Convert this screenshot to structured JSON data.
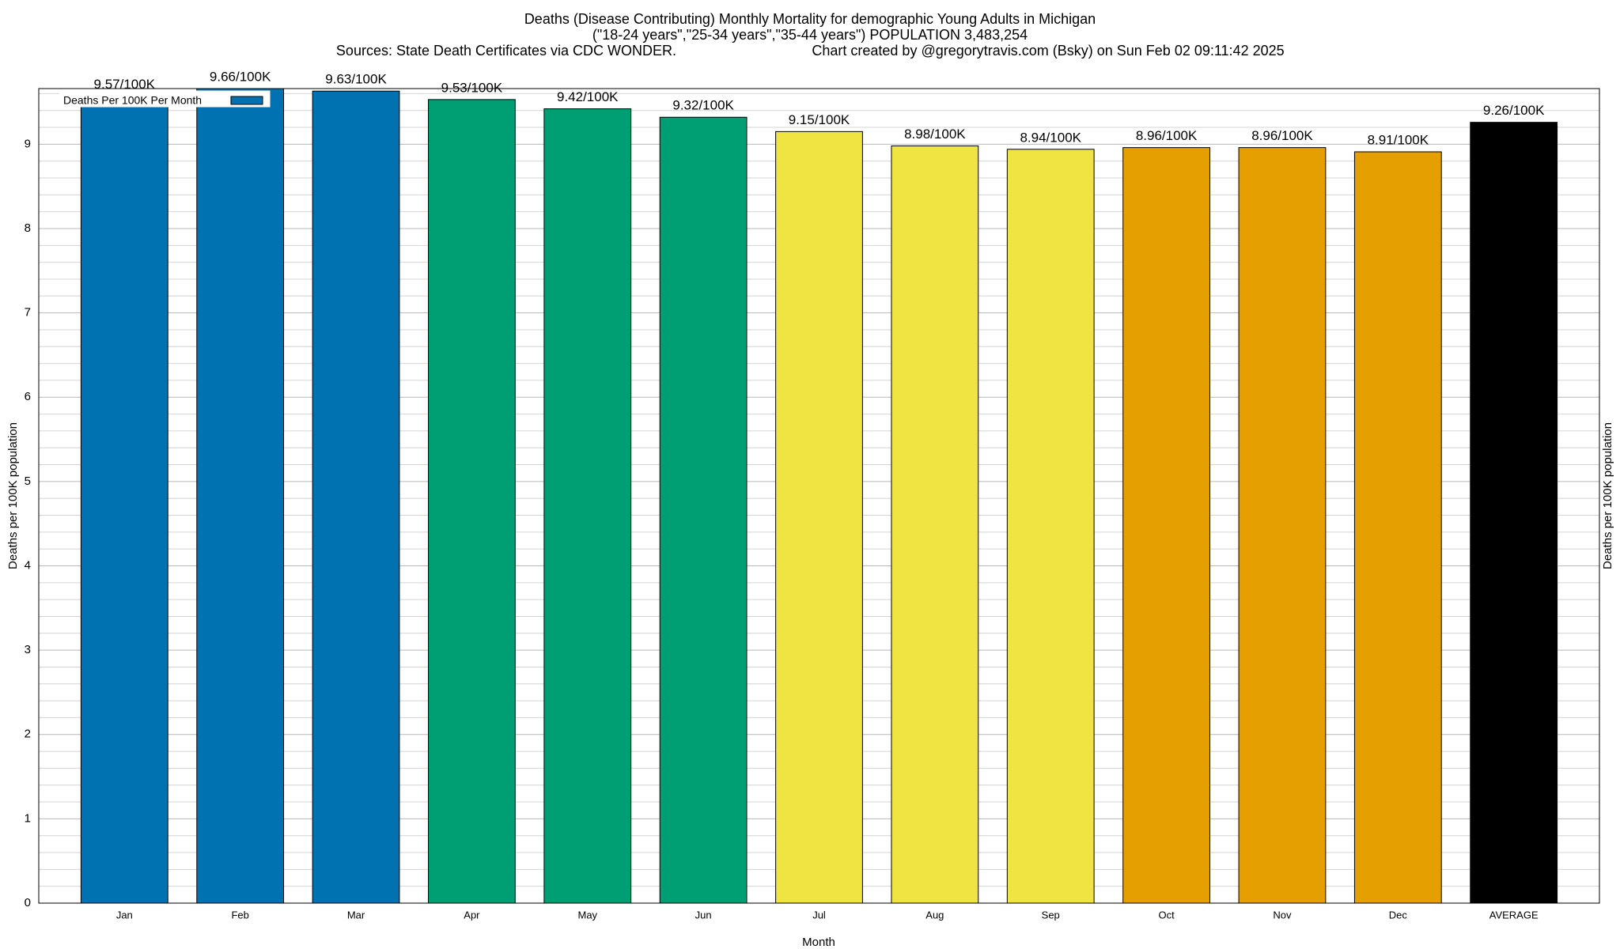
{
  "chart_data": {
    "type": "bar",
    "title": "Deaths (Disease Contributing) Monthly Mortality for demographic Young Adults in Michigan",
    "subtitle": "(\"18-24 years\",\"25-34 years\",\"35-44 years\") POPULATION 3,483,254",
    "source": "Sources: State Death Certificates via CDC WONDER.",
    "credit": "Chart created by @gregorytravis.com (Bsky) on Sun Feb 02 09:11:42 2025",
    "x_label": "Month",
    "y_label": "Deaths per 100K population",
    "y2_label": "Deaths per 100K population",
    "categories": [
      "Jan",
      "Feb",
      "Mar",
      "Apr",
      "May",
      "Jun",
      "Jul",
      "Aug",
      "Sep",
      "Oct",
      "Nov",
      "Dec",
      "AVERAGE"
    ],
    "series": [
      {
        "name": "Deaths Per 100K Per Month",
        "color": "#0072b2",
        "colors": [
          "#0072b2",
          "#0072b2",
          "#0072b2",
          "#009e73",
          "#009e73",
          "#009e73",
          "#f0e442",
          "#f0e442",
          "#f0e442",
          "#e69f00",
          "#e69f00",
          "#e69f00",
          "#000000"
        ],
        "values": [
          9.57,
          9.66,
          9.63,
          9.53,
          9.42,
          9.32,
          9.15,
          8.98,
          8.94,
          8.96,
          8.96,
          8.91,
          9.26
        ],
        "value_labels": [
          "9.57/100K",
          "9.66/100K",
          "9.63/100K",
          "9.53/100K",
          "9.42/100K",
          "9.32/100K",
          "9.15/100K",
          "8.98/100K",
          "8.94/100K",
          "8.96/100K",
          "8.96/100K",
          "8.91/100K",
          "9.26/100K"
        ]
      }
    ],
    "ylim": [
      0,
      9.66
    ],
    "yticks": [
      0,
      1,
      2,
      3,
      4,
      5,
      6,
      7,
      8,
      9
    ],
    "minor_ticks_per_interval": 5,
    "grid": true,
    "legend": "upper-left"
  }
}
